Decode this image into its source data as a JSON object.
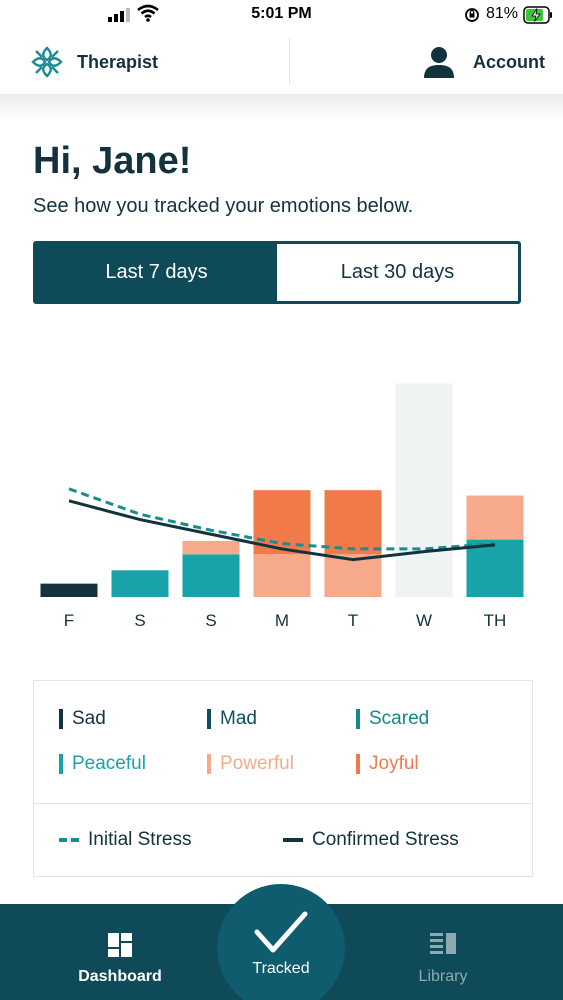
{
  "status_bar": {
    "time": "5:01 PM",
    "battery_percent": "81%",
    "icons": [
      "signal-icon",
      "wifi-icon",
      "orientation-lock-icon",
      "battery-charging-icon"
    ]
  },
  "header": {
    "therapist_label": "Therapist",
    "account_label": "Account",
    "icons": [
      "logo-icon",
      "account-icon"
    ]
  },
  "greeting": {
    "title": "Hi, Jane!",
    "subtitle": "See how you tracked your emotions below."
  },
  "tabs": [
    {
      "label": "Last 7 days",
      "active": true
    },
    {
      "label": "Last 30 days",
      "active": false
    }
  ],
  "colors": {
    "primary": "#0e4a58",
    "sad": "#12333e",
    "mad": "#0f4f5e",
    "scared": "#16878f",
    "peaceful": "#17a3a8",
    "powerful": "#f7a98c",
    "joyful": "#f07a4a",
    "placeholder": "#f0f3f4"
  },
  "chart_data": {
    "type": "bar",
    "stacked": true,
    "categories": [
      "F",
      "S",
      "S",
      "M",
      "T",
      "W",
      "TH"
    ],
    "series": [
      {
        "name": "Sad",
        "color": "#12333e",
        "values": [
          1,
          0,
          0,
          0,
          0,
          0,
          0
        ]
      },
      {
        "name": "Peaceful",
        "color": "#17a3a8",
        "values": [
          0,
          2,
          3.2,
          0,
          0,
          0,
          4.3
        ]
      },
      {
        "name": "Powerful",
        "color": "#f7a98c",
        "values": [
          0,
          0,
          1,
          3.2,
          3.2,
          0,
          3.3
        ]
      },
      {
        "name": "Joyful",
        "color": "#f07a4a",
        "values": [
          0,
          0,
          0,
          4.8,
          4.8,
          0,
          0
        ]
      }
    ],
    "placeholder_values": [
      0,
      0,
      0,
      0,
      0,
      16,
      0
    ],
    "lines": [
      {
        "name": "Initial Stress",
        "style": "dashed",
        "color": "#1a8c92",
        "values": [
          8.1,
          6.2,
          5,
          4,
          3.6,
          3.6,
          4
        ]
      },
      {
        "name": "Confirmed Stress",
        "style": "solid",
        "color": "#12333e",
        "values": [
          7.2,
          5.8,
          4.7,
          3.6,
          2.8,
          3.4,
          3.9
        ]
      }
    ],
    "ylim": [
      0,
      17
    ]
  },
  "legend": {
    "emotions": [
      {
        "label": "Sad",
        "color": "#12333e"
      },
      {
        "label": "Mad",
        "color": "#0f4f5e"
      },
      {
        "label": "Scared",
        "color": "#16878f"
      },
      {
        "label": "Peaceful",
        "color": "#17a3a8"
      },
      {
        "label": "Powerful",
        "color": "#f7a98c"
      },
      {
        "label": "Joyful",
        "color": "#f07a4a"
      }
    ],
    "stress": [
      {
        "label": "Initial Stress",
        "color": "#1a8c92",
        "style": "dashed"
      },
      {
        "label": "Confirmed Stress",
        "color": "#12333e",
        "style": "solid"
      }
    ]
  },
  "bottom_nav": {
    "dashboard_label": "Dashboard",
    "tracked_label": "Tracked",
    "library_label": "Library",
    "icons": [
      "dashboard-icon",
      "checkmark-icon",
      "library-icon"
    ]
  }
}
